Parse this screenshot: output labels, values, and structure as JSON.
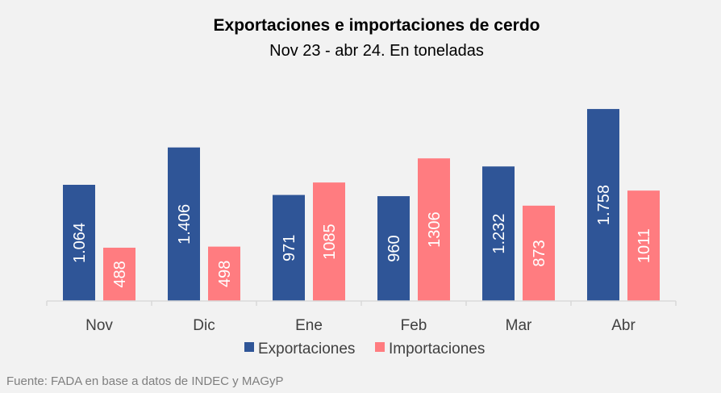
{
  "chart_data": {
    "type": "bar",
    "title": "Exportaciones e importaciones  de cerdo",
    "subtitle": "Nov 23 - abr 24. En toneladas",
    "categories": [
      "Nov",
      "Dic",
      "Ene",
      "Feb",
      "Mar",
      "Abr"
    ],
    "series": [
      {
        "name": "Exportaciones",
        "color": "#2f5597",
        "values": [
          1064,
          1406,
          971,
          960,
          1232,
          1758
        ],
        "labels": [
          "1.064",
          "1.406",
          "971",
          "960",
          "1.232",
          "1.758"
        ]
      },
      {
        "name": "Importaciones",
        "color": "#ff7c80",
        "values": [
          488,
          498,
          1085,
          1306,
          873,
          1011
        ],
        "labels": [
          "488",
          "498",
          "1085",
          "1306",
          "873",
          "1011"
        ]
      }
    ],
    "xlabel": "",
    "ylabel": "",
    "ylim": [
      0,
      1800
    ],
    "grid": false,
    "legend": "bottom"
  },
  "source": "Fuente: FADA en base a datos de INDEC y MAGyP"
}
